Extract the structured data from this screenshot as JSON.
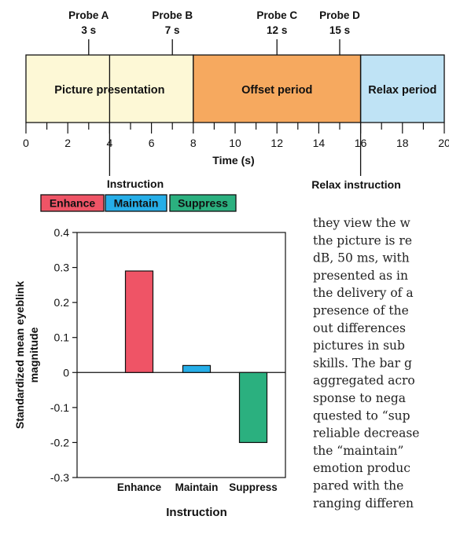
{
  "timeline": {
    "probes": [
      {
        "name": "Probe A",
        "time_label": "3 s",
        "time": 3
      },
      {
        "name": "Probe B",
        "time_label": "7 s",
        "time": 7
      },
      {
        "name": "Probe C",
        "time_label": "12 s",
        "time": 12
      },
      {
        "name": "Probe D",
        "time_label": "15 s",
        "time": 15
      }
    ],
    "periods": [
      {
        "label": "Picture presentation",
        "start": 0,
        "end": 8,
        "color": "#fdf8d6"
      },
      {
        "label": "Offset period",
        "start": 8,
        "end": 16,
        "color": "#f6a95f"
      },
      {
        "label": "Relax period",
        "start": 16,
        "end": 20,
        "color": "#bfe3f5"
      }
    ],
    "axis_label": "Time (s)",
    "tick_labels": [
      "0",
      "2",
      "4",
      "6",
      "8",
      "10",
      "12",
      "14",
      "16",
      "18",
      "20"
    ],
    "instruction_label": "Instruction",
    "instruction_time": 4,
    "relax_label": "Relax instruction",
    "relax_time": 16
  },
  "instructions": [
    {
      "label": "Enhance",
      "color": "#ef5466"
    },
    {
      "label": "Maintain",
      "color": "#26aee8"
    },
    {
      "label": "Suppress",
      "color": "#2bb07f"
    }
  ],
  "chart_data": {
    "type": "bar",
    "categories": [
      "Enhance",
      "Maintain",
      "Suppress"
    ],
    "values": [
      0.29,
      0.02,
      -0.2
    ],
    "colors": [
      "#ef5466",
      "#26aee8",
      "#2bb07f"
    ],
    "ylabel": "Standardized mean eyeblink magnitude",
    "xlabel": "Instruction",
    "ylim": [
      -0.3,
      0.4
    ],
    "yticks": [
      "0.4",
      "0.3",
      "0.2",
      "0.1",
      "0",
      "-0.1",
      "-0.2",
      "-0.3"
    ],
    "ytick_values": [
      0.4,
      0.3,
      0.2,
      0.1,
      0,
      -0.1,
      -0.2,
      -0.3
    ]
  },
  "body_text": {
    "lines": [
      "they view the w",
      "the picture is re",
      "dB, 50 ms, with",
      "presented as in",
      "the delivery of a",
      "presence of the",
      "out differences",
      "pictures in sub",
      "skills. The bar g",
      "aggregated acro",
      "sponse to nega",
      "quested to “sup",
      "reliable decrease",
      "the “maintain”",
      "emotion produc",
      "pared with the",
      "ranging differen"
    ]
  }
}
